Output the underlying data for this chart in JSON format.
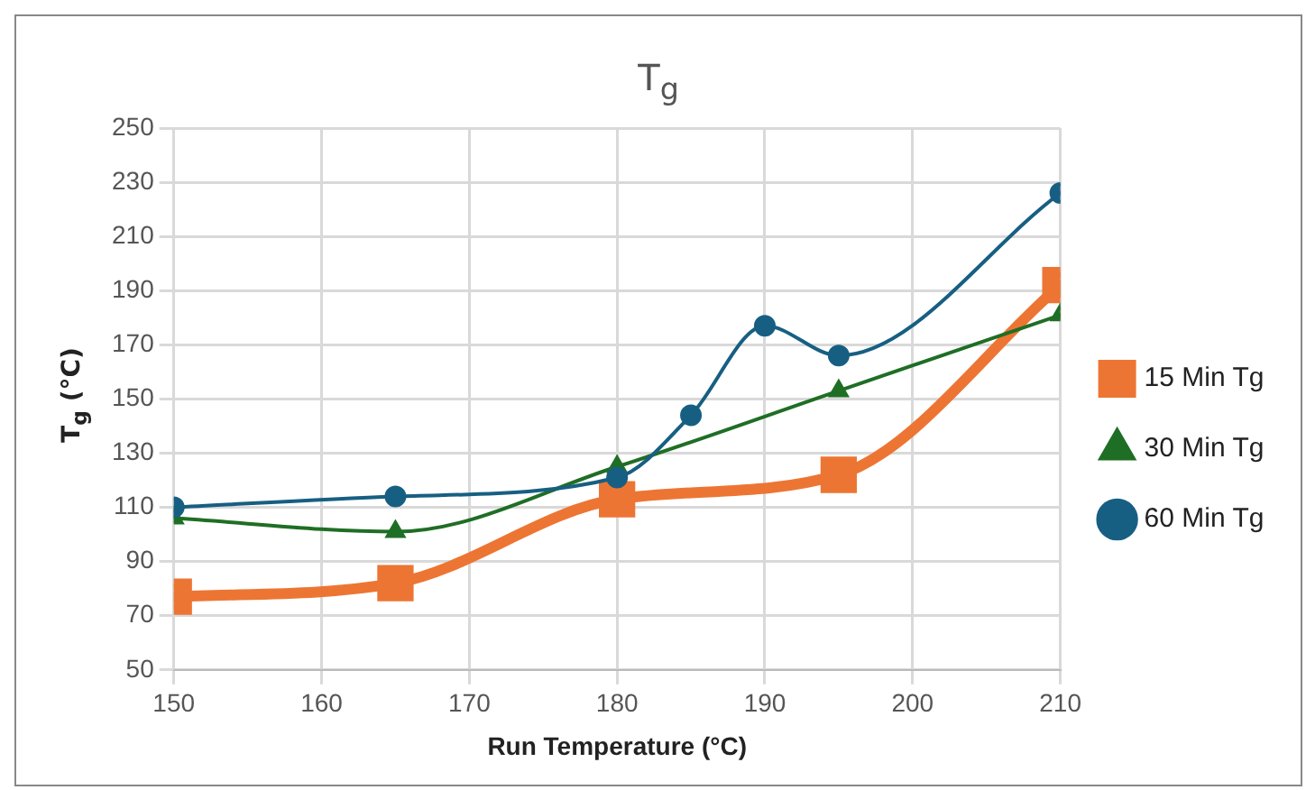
{
  "chart_data": {
    "type": "line",
    "title": "T$_{g}$",
    "xlabel": "Run Temperature (°C)",
    "ylabel": "T$_{g}$ (°C)",
    "xlim": [
      150,
      210
    ],
    "xticks": [
      150,
      160,
      170,
      180,
      190,
      200,
      210
    ],
    "ylim": [
      50,
      250
    ],
    "yticks": [
      50,
      70,
      90,
      110,
      130,
      150,
      170,
      190,
      210,
      230,
      250
    ],
    "grid": true,
    "legend": "right",
    "series": [
      {
        "name": "15 Min Tg",
        "color": "#ed7533",
        "marker": "square",
        "x": [
          150,
          165,
          180,
          195,
          210
        ],
        "values": [
          77,
          82,
          113,
          122,
          192
        ]
      },
      {
        "name": "30 Min Tg",
        "color": "#1f6e25",
        "marker": "triangle",
        "x": [
          150,
          165,
          180,
          195,
          210
        ],
        "values": [
          106,
          101,
          125,
          153,
          181
        ]
      },
      {
        "name": "60 Min Tg",
        "color": "#175f82",
        "marker": "circle",
        "x": [
          150,
          165,
          180,
          185,
          190,
          195,
          210
        ],
        "values": [
          110,
          114,
          121,
          144,
          177,
          166,
          226
        ]
      }
    ]
  }
}
